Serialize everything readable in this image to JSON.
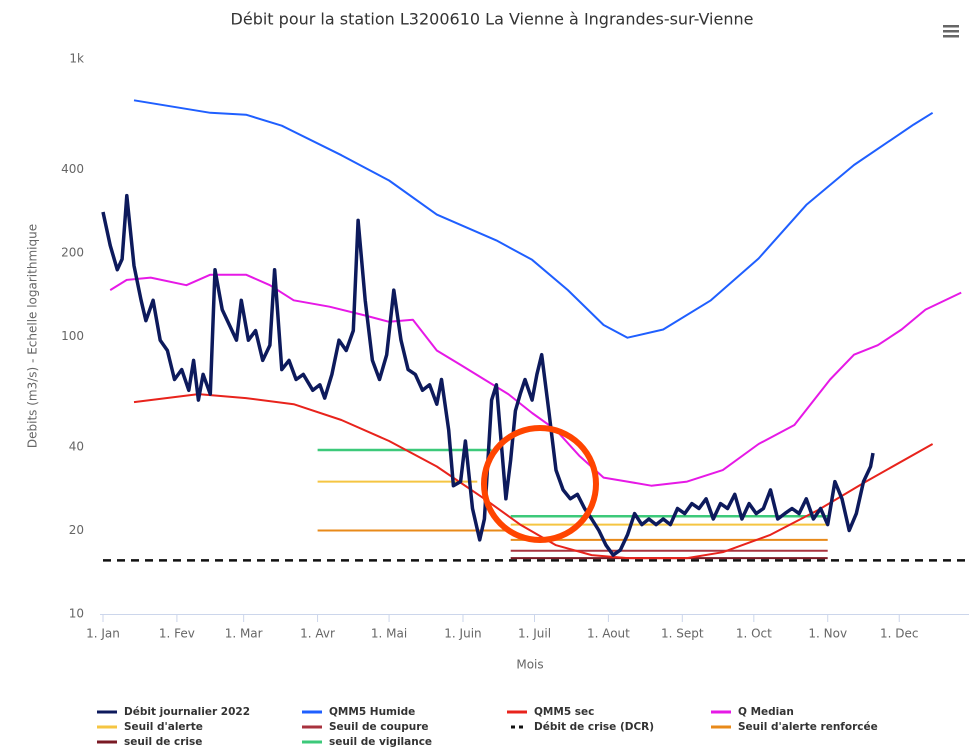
{
  "chart_data": {
    "type": "line",
    "title": "Débit pour la station L3200610 La Vienne à Ingrandes-sur-Vienne",
    "x_label": "Mois",
    "y_label": "Debits (m3/s) - Echelle logarithmique",
    "log_y": true,
    "grid": false,
    "legend": "bottom",
    "xlim": [
      0,
      362
    ],
    "xticks": [
      {
        "value": 0,
        "label": "1. Jan"
      },
      {
        "value": 31,
        "label": "1. Fev"
      },
      {
        "value": 59,
        "label": "1. Mar"
      },
      {
        "value": 90,
        "label": "1. Avr"
      },
      {
        "value": 120,
        "label": "1. Mai"
      },
      {
        "value": 151,
        "label": "1. Juin"
      },
      {
        "value": 181,
        "label": "1. Juil"
      },
      {
        "value": 212,
        "label": "1. Aout"
      },
      {
        "value": 243,
        "label": "1. Sept"
      },
      {
        "value": 273,
        "label": "1. Oct"
      },
      {
        "value": 304,
        "label": "1. Nov"
      },
      {
        "value": 334,
        "label": "1. Dec"
      }
    ],
    "ylim": [
      10,
      1000
    ],
    "yticks": [
      10,
      20,
      40,
      100,
      200,
      400,
      {
        "value": 1000,
        "label": "1k"
      }
    ],
    "series": [
      {
        "name": "Débit journalier 2022",
        "color": "#0d1a5c",
        "width": 3.5,
        "x": [
          0,
          3,
          6,
          8,
          10,
          13,
          16,
          18,
          21,
          24,
          27,
          30,
          33,
          36,
          38,
          40,
          42,
          45,
          47,
          50,
          53,
          56,
          58,
          61,
          64,
          67,
          70,
          72,
          75,
          78,
          81,
          84,
          88,
          91,
          93,
          96,
          99,
          102,
          105,
          107,
          110,
          113,
          116,
          119,
          122,
          125,
          128,
          131,
          134,
          137,
          140,
          142,
          145,
          147,
          150,
          152,
          155,
          158,
          160,
          163,
          165,
          167,
          169,
          171,
          173,
          175,
          177,
          180,
          182,
          184,
          187,
          190,
          193,
          196,
          199,
          202,
          205,
          208,
          211,
          214,
          217,
          220,
          223,
          226,
          229,
          232,
          235,
          238,
          241,
          244,
          247,
          250,
          253,
          256,
          259,
          262,
          265,
          268,
          271,
          274,
          277,
          280,
          283,
          286,
          289,
          292,
          295,
          298,
          301,
          304,
          307,
          310,
          313,
          316,
          319,
          322,
          323
        ],
        "values": [
          281,
          213,
          174,
          190,
          322,
          180,
          135,
          114,
          135,
          97,
          89,
          70,
          76,
          64,
          82,
          59,
          73,
          62,
          174,
          125,
          110,
          97,
          135,
          97,
          105,
          82,
          93,
          174,
          76,
          82,
          70,
          73,
          64,
          67,
          60,
          73,
          97,
          89,
          105,
          262,
          135,
          82,
          70,
          86,
          147,
          97,
          76,
          73,
          64,
          67,
          57,
          70,
          46,
          29,
          30,
          42,
          24,
          18.5,
          22,
          59,
          67,
          42,
          26,
          36,
          54,
          62,
          70,
          59,
          73,
          86,
          54,
          33,
          28,
          26,
          27,
          24,
          22,
          20,
          17.7,
          16.3,
          17,
          19.3,
          23,
          21,
          22,
          21,
          22,
          21,
          24,
          23,
          25,
          24,
          26,
          22,
          25,
          24,
          27,
          22,
          25,
          23,
          24,
          28,
          22,
          23,
          24,
          23,
          26,
          22,
          24,
          21,
          30,
          26,
          20,
          23,
          30,
          34,
          38
        ]
      },
      {
        "name": "QMM5 Humide",
        "color": "#1f5fff",
        "width": 2,
        "x": [
          13,
          45,
          60,
          75,
          100,
          120,
          140,
          165,
          180,
          195,
          210,
          220,
          235,
          255,
          275,
          295,
          315,
          340,
          348
        ],
        "values": [
          710,
          640,
          630,
          575,
          450,
          365,
          275,
          222,
          189,
          147,
          110,
          99,
          106,
          135,
          191,
          298,
          415,
          580,
          640
        ]
      },
      {
        "name": "QMM5 sec",
        "color": "#e8231c",
        "width": 2,
        "x": [
          13,
          40,
          60,
          80,
          100,
          120,
          140,
          160,
          175,
          190,
          205,
          220,
          245,
          260,
          280,
          300,
          320,
          348
        ],
        "values": [
          58,
          62,
          60,
          57,
          50,
          42,
          34,
          26,
          21,
          17.7,
          16.3,
          15.9,
          15.9,
          16.7,
          19.3,
          23.7,
          30,
          41
        ]
      },
      {
        "name": "Q Median",
        "color": "#e619e6",
        "width": 2,
        "x": [
          3,
          10,
          20,
          35,
          45,
          60,
          70,
          80,
          95,
          110,
          120,
          130,
          140,
          150,
          160,
          170,
          180,
          190,
          200,
          210,
          220,
          230,
          245,
          260,
          275,
          290,
          305,
          315,
          325,
          335,
          345,
          360
        ],
        "values": [
          147,
          160,
          163,
          153,
          167,
          167,
          153,
          135,
          128,
          119,
          113,
          115,
          89,
          79,
          70,
          62,
          53,
          46,
          37,
          31,
          30,
          29,
          30,
          33,
          41,
          48,
          70,
          86,
          93,
          106,
          125,
          144
        ]
      },
      {
        "name": "Seuil d'alerte",
        "color": "#f5c542",
        "width": 2,
        "x": [
          90,
          157,
          164,
          171,
          304
        ],
        "values": [
          30,
          30,
          null,
          21,
          21
        ]
      },
      {
        "name": "Seuil de coupure",
        "color": "#a8323e",
        "width": 2,
        "x": [
          171,
          304
        ],
        "values": [
          16.9,
          16.9
        ]
      },
      {
        "name": "Débit de crise (DCR)",
        "color": "#111111",
        "width": 2.5,
        "dashed": true,
        "x": [
          0,
          362
        ],
        "values": [
          15.6,
          15.6
        ]
      },
      {
        "name": "Seuil d'alerte renforcée",
        "color": "#e88a1a",
        "width": 2,
        "x": [
          90,
          170,
          170.5,
          171,
          304
        ],
        "values": [
          20,
          20,
          null,
          18.5,
          18.5
        ]
      },
      {
        "name": "seuil de crise",
        "color": "#7a1a24",
        "width": 2,
        "x": [
          171,
          304
        ],
        "values": [
          15.9,
          15.9
        ]
      },
      {
        "name": "seuil de vigilance",
        "color": "#3cc97a",
        "width": 2.5,
        "x": [
          90,
          163,
          167,
          171,
          304
        ],
        "values": [
          39,
          39,
          null,
          22.5,
          22.5
        ]
      }
    ]
  }
}
